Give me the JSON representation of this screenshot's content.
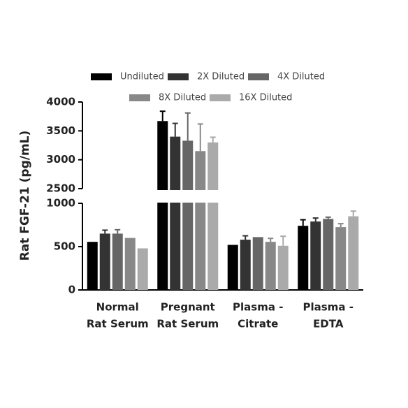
{
  "chart_data": {
    "type": "bar",
    "y_label": "Rat FGF-21 (pg/mL)",
    "categories": [
      [
        "Normal",
        "Rat Serum"
      ],
      [
        "Pregnant",
        "Rat Serum"
      ],
      [
        "Plasma -",
        "Citrate"
      ],
      [
        "Plasma -",
        "EDTA"
      ]
    ],
    "series": [
      {
        "name": "Undiluted",
        "color": "#000000",
        "values": [
          555,
          3670,
          520,
          740
        ],
        "errors": [
          0,
          170,
          0,
          70
        ]
      },
      {
        "name": "2X Diluted",
        "color": "#333333",
        "values": [
          650,
          3400,
          580,
          790
        ],
        "errors": [
          40,
          230,
          45,
          40
        ]
      },
      {
        "name": "4X Diluted",
        "color": "#666666",
        "values": [
          650,
          3330,
          610,
          820
        ],
        "errors": [
          45,
          480,
          0,
          20
        ]
      },
      {
        "name": "8X Diluted",
        "color": "#888888",
        "values": [
          600,
          3150,
          555,
          725
        ],
        "errors": [
          0,
          470,
          40,
          40
        ]
      },
      {
        "name": "16X Diluted",
        "color": "#aaaaaa",
        "values": [
          480,
          3300,
          510,
          850
        ],
        "errors": [
          0,
          90,
          110,
          60
        ]
      }
    ],
    "ylim": [
      0,
      4000
    ],
    "ybreak": [
      1000,
      2500
    ],
    "yticks": [
      0,
      500,
      1000,
      2500,
      3000,
      3500,
      4000
    ]
  }
}
